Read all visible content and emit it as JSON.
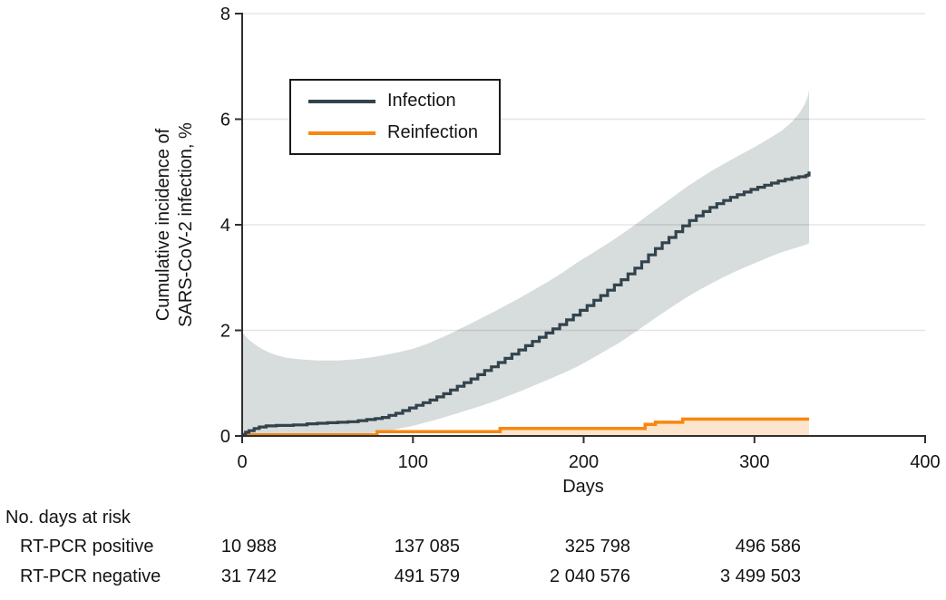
{
  "colors": {
    "infection_line": "#33434c",
    "infection_band": "#d7dcdc",
    "reinfection_line": "#f8860f",
    "reinfection_band": "#fce5cc",
    "axis": "#2f2f2f",
    "gridline": "rgba(0,0,0,0.10)",
    "text": "#141414"
  },
  "chart_data": {
    "type": "line",
    "title": "",
    "xlabel": "Days",
    "ylabel": "Cumulative incidence of SARS-CoV-2 infection, %",
    "ylabel_line1": "Cumulative incidence of",
    "ylabel_line2": "SARS-CoV-2 infection, %",
    "xlim": [
      0,
      400
    ],
    "ylim": [
      0,
      8
    ],
    "x_ticks": [
      0,
      100,
      200,
      300,
      400
    ],
    "y_ticks": [
      0,
      2,
      4,
      6,
      8
    ],
    "grid": "horizontal",
    "legend_position": "upper-left-inside",
    "series": [
      {
        "name": "Infection",
        "color": "#33434c",
        "band_color": "#d7dcdc",
        "step": true,
        "points": [
          [
            0,
            0.03
          ],
          [
            2,
            0.07
          ],
          [
            4,
            0.1
          ],
          [
            7,
            0.14
          ],
          [
            10,
            0.17
          ],
          [
            14,
            0.19
          ],
          [
            20,
            0.2
          ],
          [
            30,
            0.21
          ],
          [
            38,
            0.23
          ],
          [
            44,
            0.24
          ],
          [
            50,
            0.25
          ],
          [
            56,
            0.26
          ],
          [
            62,
            0.27
          ],
          [
            68,
            0.29
          ],
          [
            73,
            0.31
          ],
          [
            78,
            0.33
          ],
          [
            82,
            0.35
          ],
          [
            86,
            0.39
          ],
          [
            90,
            0.43
          ],
          [
            94,
            0.48
          ],
          [
            98,
            0.53
          ],
          [
            102,
            0.58
          ],
          [
            106,
            0.63
          ],
          [
            110,
            0.68
          ],
          [
            114,
            0.74
          ],
          [
            118,
            0.8
          ],
          [
            122,
            0.87
          ],
          [
            126,
            0.94
          ],
          [
            130,
            1.01
          ],
          [
            134,
            1.08
          ],
          [
            138,
            1.16
          ],
          [
            142,
            1.24
          ],
          [
            146,
            1.31
          ],
          [
            150,
            1.39
          ],
          [
            154,
            1.47
          ],
          [
            158,
            1.55
          ],
          [
            162,
            1.63
          ],
          [
            166,
            1.71
          ],
          [
            170,
            1.79
          ],
          [
            174,
            1.87
          ],
          [
            178,
            1.95
          ],
          [
            182,
            2.03
          ],
          [
            186,
            2.11
          ],
          [
            190,
            2.2
          ],
          [
            194,
            2.29
          ],
          [
            198,
            2.38
          ],
          [
            202,
            2.47
          ],
          [
            206,
            2.57
          ],
          [
            210,
            2.66
          ],
          [
            214,
            2.76
          ],
          [
            218,
            2.86
          ],
          [
            222,
            2.96
          ],
          [
            226,
            3.07
          ],
          [
            230,
            3.18
          ],
          [
            234,
            3.3
          ],
          [
            238,
            3.43
          ],
          [
            242,
            3.55
          ],
          [
            246,
            3.66
          ],
          [
            250,
            3.76
          ],
          [
            254,
            3.87
          ],
          [
            258,
            3.98
          ],
          [
            262,
            4.08
          ],
          [
            266,
            4.17
          ],
          [
            270,
            4.25
          ],
          [
            274,
            4.33
          ],
          [
            278,
            4.4
          ],
          [
            282,
            4.46
          ],
          [
            286,
            4.52
          ],
          [
            290,
            4.57
          ],
          [
            294,
            4.62
          ],
          [
            298,
            4.67
          ],
          [
            302,
            4.71
          ],
          [
            306,
            4.75
          ],
          [
            310,
            4.79
          ],
          [
            314,
            4.83
          ],
          [
            318,
            4.86
          ],
          [
            322,
            4.89
          ],
          [
            326,
            4.91
          ],
          [
            330,
            4.93
          ],
          [
            331,
            4.94
          ],
          [
            332,
            5.01
          ]
        ],
        "band_upper": [
          [
            0,
            1.96
          ],
          [
            4,
            1.82
          ],
          [
            8,
            1.72
          ],
          [
            12,
            1.64
          ],
          [
            16,
            1.58
          ],
          [
            20,
            1.53
          ],
          [
            26,
            1.48
          ],
          [
            34,
            1.45
          ],
          [
            44,
            1.43
          ],
          [
            56,
            1.43
          ],
          [
            66,
            1.45
          ],
          [
            74,
            1.48
          ],
          [
            80,
            1.51
          ],
          [
            86,
            1.55
          ],
          [
            92,
            1.59
          ],
          [
            100,
            1.65
          ],
          [
            108,
            1.74
          ],
          [
            116,
            1.85
          ],
          [
            124,
            1.97
          ],
          [
            132,
            2.1
          ],
          [
            140,
            2.23
          ],
          [
            148,
            2.36
          ],
          [
            156,
            2.5
          ],
          [
            164,
            2.64
          ],
          [
            172,
            2.79
          ],
          [
            180,
            2.94
          ],
          [
            188,
            3.1
          ],
          [
            196,
            3.28
          ],
          [
            204,
            3.44
          ],
          [
            212,
            3.6
          ],
          [
            220,
            3.77
          ],
          [
            228,
            3.95
          ],
          [
            236,
            4.14
          ],
          [
            244,
            4.33
          ],
          [
            252,
            4.52
          ],
          [
            260,
            4.71
          ],
          [
            268,
            4.88
          ],
          [
            276,
            5.04
          ],
          [
            284,
            5.19
          ],
          [
            292,
            5.33
          ],
          [
            300,
            5.47
          ],
          [
            308,
            5.62
          ],
          [
            316,
            5.78
          ],
          [
            322,
            5.95
          ],
          [
            326,
            6.1
          ],
          [
            329,
            6.25
          ],
          [
            331,
            6.4
          ],
          [
            332,
            6.55
          ]
        ],
        "band_lower": [
          [
            0,
            0.0
          ],
          [
            20,
            0.01
          ],
          [
            40,
            0.02
          ],
          [
            56,
            0.02
          ],
          [
            66,
            0.03
          ],
          [
            74,
            0.05
          ],
          [
            80,
            0.07
          ],
          [
            86,
            0.1
          ],
          [
            92,
            0.14
          ],
          [
            100,
            0.19
          ],
          [
            108,
            0.26
          ],
          [
            116,
            0.33
          ],
          [
            124,
            0.41
          ],
          [
            132,
            0.49
          ],
          [
            140,
            0.57
          ],
          [
            148,
            0.66
          ],
          [
            156,
            0.76
          ],
          [
            164,
            0.86
          ],
          [
            172,
            0.97
          ],
          [
            180,
            1.08
          ],
          [
            188,
            1.19
          ],
          [
            196,
            1.31
          ],
          [
            204,
            1.45
          ],
          [
            212,
            1.6
          ],
          [
            220,
            1.75
          ],
          [
            228,
            1.92
          ],
          [
            236,
            2.1
          ],
          [
            244,
            2.28
          ],
          [
            252,
            2.45
          ],
          [
            260,
            2.62
          ],
          [
            268,
            2.77
          ],
          [
            276,
            2.91
          ],
          [
            284,
            3.04
          ],
          [
            292,
            3.16
          ],
          [
            300,
            3.27
          ],
          [
            308,
            3.38
          ],
          [
            316,
            3.48
          ],
          [
            324,
            3.56
          ],
          [
            330,
            3.62
          ],
          [
            332,
            3.65
          ]
        ]
      },
      {
        "name": "Reinfection",
        "color": "#f8860f",
        "band_color": "#fce5cc",
        "step": true,
        "points": [
          [
            0,
            0.02
          ],
          [
            79,
            0.02
          ],
          [
            79,
            0.08
          ],
          [
            151,
            0.08
          ],
          [
            151,
            0.14
          ],
          [
            236,
            0.14
          ],
          [
            236,
            0.22
          ],
          [
            242,
            0.22
          ],
          [
            242,
            0.26
          ],
          [
            258,
            0.26
          ],
          [
            258,
            0.32
          ],
          [
            332,
            0.32
          ]
        ],
        "band_upper": [
          [
            151,
            0.13
          ],
          [
            236,
            0.13
          ],
          [
            236,
            0.21
          ],
          [
            242,
            0.21
          ],
          [
            242,
            0.25
          ],
          [
            258,
            0.25
          ],
          [
            258,
            0.31
          ],
          [
            332,
            0.31
          ]
        ],
        "band_lower": [
          [
            151,
            0.01
          ],
          [
            332,
            0.01
          ]
        ]
      }
    ]
  },
  "legend": {
    "items": [
      {
        "label": "Infection"
      },
      {
        "label": "Reinfection"
      }
    ]
  },
  "risk_table": {
    "title": "No. days at risk",
    "columns_days": [
      0,
      100,
      200,
      300
    ],
    "rows": [
      {
        "label": "RT-PCR positive",
        "values": [
          "10 988",
          "137 085",
          "325 798",
          "496 586"
        ]
      },
      {
        "label": "RT-PCR negative",
        "values": [
          "31 742",
          "491 579",
          "2 040 576",
          "3 499 503"
        ]
      }
    ]
  }
}
